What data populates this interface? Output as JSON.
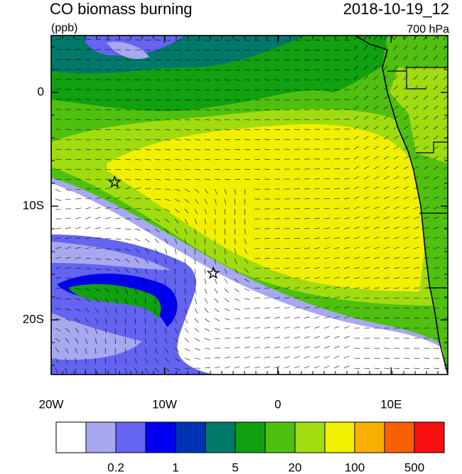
{
  "header": {
    "title": "CO biomass burning",
    "units": "(ppb)",
    "datetime": "2018-10-19_12",
    "level": "700 hPa"
  },
  "map": {
    "lon_range": [
      -20,
      15
    ],
    "lat_range": [
      -24.8,
      5
    ],
    "lat_ticks": [
      0,
      {
        "value": -10,
        "label": "10S"
      },
      {
        "value": -20,
        "label": "20S"
      }
    ],
    "lon_ticks": [
      {
        "value": -20,
        "label": "20W"
      },
      {
        "value": -10,
        "label": "10W"
      },
      0,
      {
        "value": 10,
        "label": "10E"
      }
    ],
    "markers": [
      {
        "lon": -14.4,
        "lat": -7.9
      },
      {
        "lon": -5.7,
        "lat": -15.9
      }
    ]
  },
  "colorbar": {
    "colors": [
      "#ffffff",
      "#a8a8f0",
      "#6464f0",
      "#0000f0",
      "#0032b4",
      "#00786a",
      "#10a010",
      "#50c010",
      "#a0dc10",
      "#f0f000",
      "#f8b000",
      "#f86000",
      "#f81010"
    ],
    "labels": [
      0.2,
      1,
      5,
      20,
      100,
      500
    ]
  }
}
